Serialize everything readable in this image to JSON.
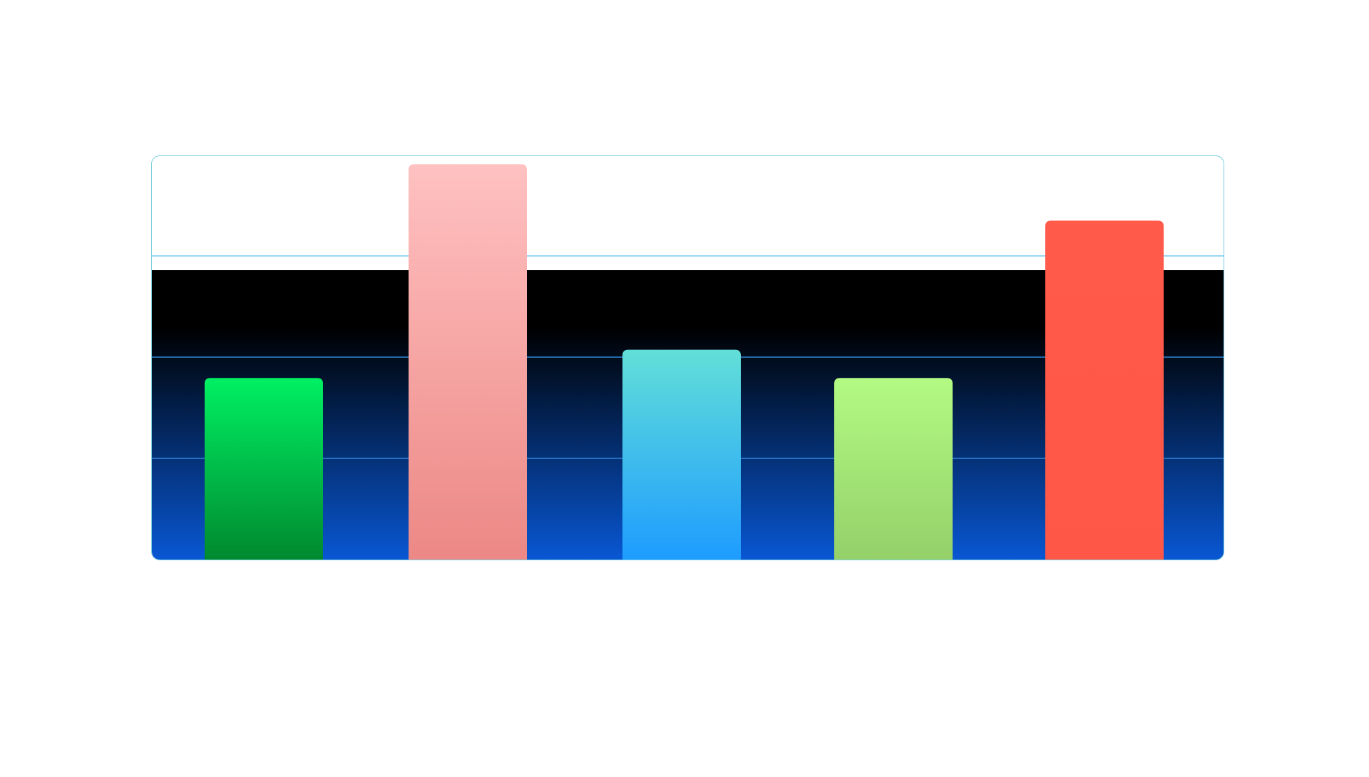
{
  "chart_data": {
    "type": "bar",
    "categories": [
      "",
      "",
      "",
      "",
      ""
    ],
    "values": [
      45,
      98,
      52,
      45,
      84
    ],
    "ylim": [
      0,
      100
    ],
    "grid": true,
    "colors": [
      {
        "top": "#00f063",
        "bottom": "#00892f"
      },
      {
        "top": "#ffc1c1",
        "bottom": "#ec8885"
      },
      {
        "top": "#62dfd8",
        "bottom": "#1e9cff"
      },
      {
        "top": "#b2fa83",
        "bottom": "#95d06a"
      },
      {
        "top": "#ff5a4a",
        "bottom": "#ff5747"
      }
    ],
    "background": {
      "top": "#000000",
      "bottom": "#0857d4",
      "grid_color": "#2f86d6"
    }
  }
}
